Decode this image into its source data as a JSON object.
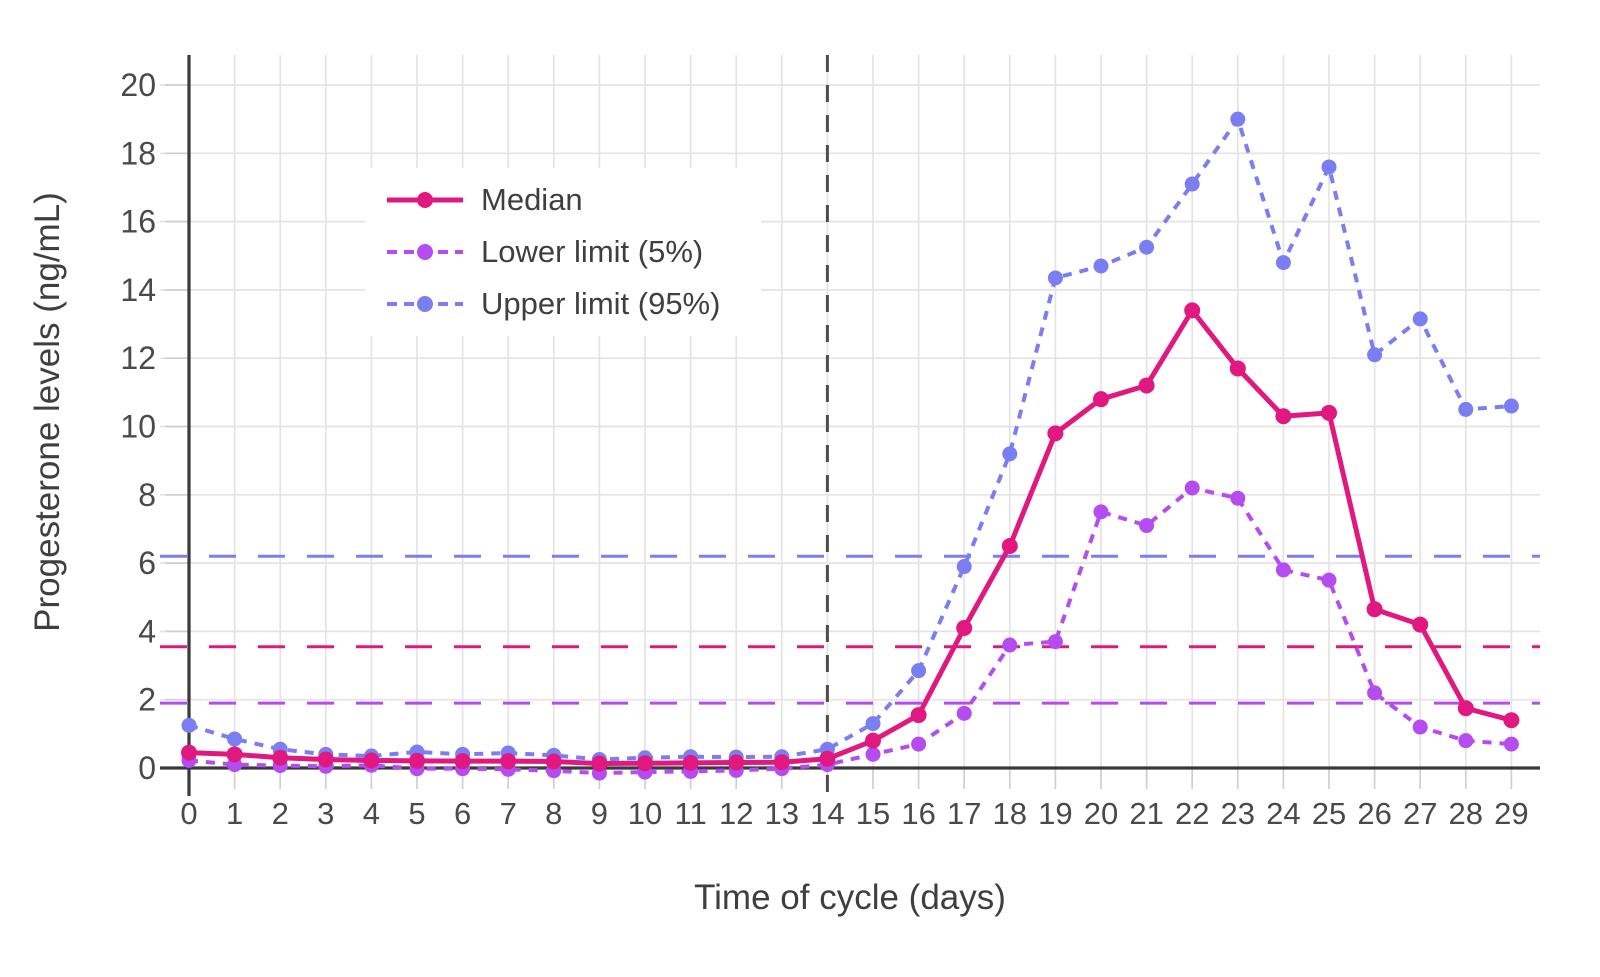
{
  "colors": {
    "background": "#ffffff",
    "axis": "#3a3a3a",
    "grid": "#e4e4e4",
    "tick_stub": "#cfcfcf",
    "tick_label": "#4a4a4a",
    "axis_title": "#3f3f3f",
    "legend_text": "#3f3f3f",
    "event_line": "#4d4d4d"
  },
  "chart_data": {
    "type": "line",
    "title": "",
    "xlabel": "Time of cycle (days)",
    "ylabel": "Progesterone levels (ng/mL)",
    "x": [
      0,
      1,
      2,
      3,
      4,
      5,
      6,
      7,
      8,
      9,
      10,
      11,
      12,
      13,
      14,
      15,
      16,
      17,
      18,
      19,
      20,
      21,
      22,
      23,
      24,
      25,
      26,
      27,
      28,
      29
    ],
    "x_tick_labels": [
      "0",
      "1",
      "2",
      "3",
      "4",
      "5",
      "6",
      "7",
      "8",
      "9",
      "10",
      "11",
      "12",
      "13",
      "14",
      "15",
      "16",
      "17",
      "18",
      "19",
      "20",
      "21",
      "22",
      "23",
      "24",
      "25",
      "26",
      "27",
      "28",
      "29"
    ],
    "y_tick_labels": [
      "0",
      "2",
      "4",
      "6",
      "8",
      "10",
      "12",
      "14",
      "16",
      "18",
      "20"
    ],
    "y_ticks": [
      0,
      2,
      4,
      6,
      8,
      10,
      12,
      14,
      16,
      18,
      20
    ],
    "xlim": [
      -0.6,
      29.6
    ],
    "ylim": [
      -0.8,
      20.9
    ],
    "grid": true,
    "legend_position": "inside-top-left",
    "series": [
      {
        "name": "Median",
        "color": "#e0187f",
        "line_style": "solid",
        "marker": "circle",
        "values": [
          0.45,
          0.4,
          0.3,
          0.25,
          0.22,
          0.21,
          0.2,
          0.2,
          0.19,
          0.13,
          0.14,
          0.15,
          0.16,
          0.17,
          0.27,
          0.8,
          1.55,
          4.1,
          6.5,
          9.8,
          10.8,
          11.2,
          13.4,
          11.7,
          10.3,
          10.4,
          4.65,
          4.2,
          1.75,
          1.4
        ]
      },
      {
        "name": "Lower limit (5%)",
        "color": "#b44cf0",
        "line_style": "dashed",
        "marker": "circle",
        "values": [
          0.22,
          0.1,
          0.07,
          0.05,
          0.08,
          -0.02,
          -0.02,
          -0.04,
          -0.08,
          -0.15,
          -0.12,
          -0.1,
          -0.07,
          -0.02,
          0.1,
          0.4,
          0.7,
          1.6,
          3.6,
          3.7,
          7.5,
          7.1,
          8.2,
          7.9,
          5.8,
          5.5,
          2.2,
          1.2,
          0.8,
          0.7
        ]
      },
      {
        "name": "Upper limit (95%)",
        "color": "#7b7ef2",
        "line_style": "dashed",
        "marker": "circle",
        "values": [
          1.25,
          0.85,
          0.55,
          0.4,
          0.35,
          0.47,
          0.4,
          0.44,
          0.37,
          0.25,
          0.3,
          0.33,
          0.32,
          0.33,
          0.55,
          1.3,
          2.85,
          5.9,
          9.2,
          14.35,
          14.7,
          15.25,
          17.1,
          19.0,
          14.8,
          17.6,
          12.1,
          13.15,
          10.5,
          10.6
        ]
      }
    ],
    "reference_lines": [
      {
        "value": 6.2,
        "color": "#7b7ef2",
        "style": "long-dash",
        "orientation": "horizontal"
      },
      {
        "value": 3.55,
        "color": "#e0187f",
        "style": "long-dash",
        "orientation": "horizontal"
      },
      {
        "value": 1.9,
        "color": "#b44cf0",
        "style": "long-dash",
        "orientation": "horizontal"
      }
    ],
    "event_line": {
      "x": 14,
      "style": "dashed",
      "orientation": "vertical"
    }
  }
}
